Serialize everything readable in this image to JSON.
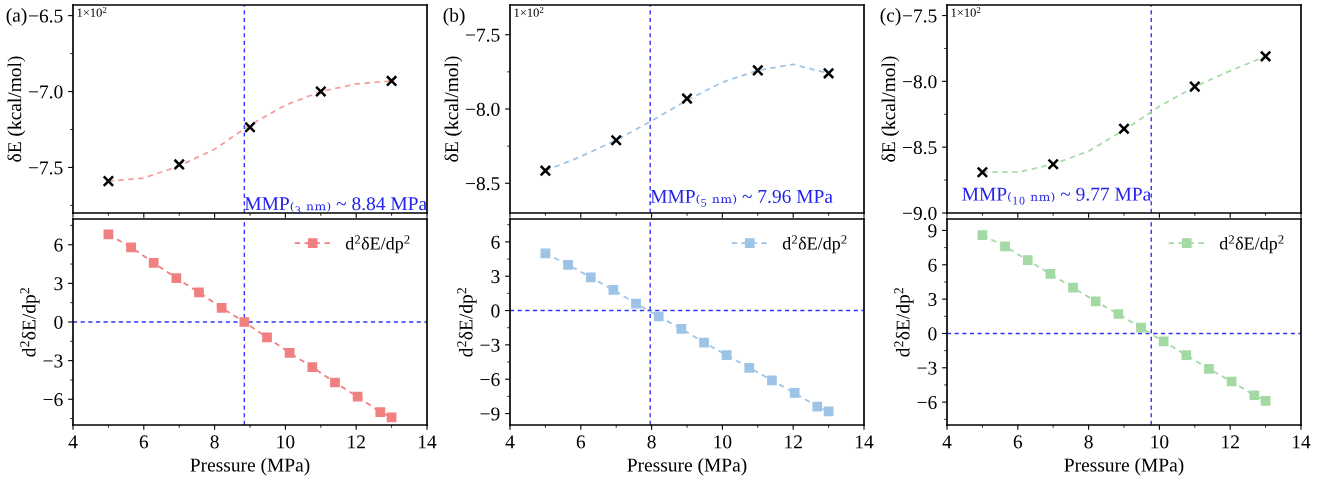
{
  "chart_data": [
    {
      "type": "scatter",
      "ylabel": "δE (kcal/mol)",
      "xlim": [
        4,
        14
      ],
      "xticks": [
        4,
        6,
        8,
        10,
        12,
        14
      ],
      "ylim": [
        -7.8,
        -6.43
      ],
      "yticks": [
        -6.5,
        {
          "value": -7,
          "label": "−7.0"
        },
        -7.5
      ],
      "tick_labels": "y",
      "annotations": [
        "(a)",
        "1×10$^{2}$",
        {
          "text": "MMP₍₃ ₙₘ₎ ~ 8.84 MPa",
          "x": 8.84,
          "y": -7.75
        }
      ],
      "ref_lines": [
        {
          "axis": "x",
          "value": 8.84,
          "color": "#3333ff",
          "line_style": "dashed"
        }
      ],
      "series": [
        {
          "type": "line",
          "color": "#f4a0a0",
          "line_style": "dashed",
          "marker": "none",
          "x": [
            5,
            6,
            7,
            8,
            9,
            10,
            11,
            12,
            13
          ],
          "values": [
            -7.59,
            -7.57,
            -7.49,
            -7.38,
            -7.22,
            -7.09,
            -7.0,
            -6.95,
            -6.93
          ]
        },
        {
          "type": "scatter",
          "color": "#000000",
          "marker": "cross",
          "x": [
            5,
            7,
            9,
            11,
            13
          ],
          "values": [
            -7.59,
            -7.48,
            -7.235,
            -7.0,
            -6.93
          ]
        }
      ]
    },
    {
      "type": "line",
      "ylabel": "d$^{2}$δE/dp$^{2}$",
      "xlabel": "Pressure (MPa)",
      "xlim": [
        4,
        14
      ],
      "xticks": [
        4,
        6,
        8,
        10,
        12,
        14
      ],
      "ylim": [
        -8,
        8
      ],
      "yticks": [
        -6,
        -3,
        0,
        3,
        6
      ],
      "legend": "top right",
      "ref_lines": [
        {
          "axis": "x",
          "value": 8.84,
          "color": "#3333ff",
          "line_style": "dashed"
        },
        {
          "axis": "y",
          "value": 0,
          "color": "#3333ff",
          "line_style": "dashed"
        }
      ],
      "series": [
        {
          "name": "d$^{2}$δE/dp$^{2}$",
          "color": "#f08080",
          "line_style": "dashed",
          "marker": "square",
          "x": [
            5,
            5.64,
            6.28,
            6.92,
            7.56,
            8.2,
            8.84,
            9.48,
            10.12,
            10.76,
            11.4,
            12.04,
            12.68,
            13
          ],
          "values": [
            6.8,
            5.8,
            4.6,
            3.4,
            2.3,
            1.1,
            0.0,
            -1.2,
            -2.4,
            -3.5,
            -4.7,
            -5.8,
            -7.0,
            -7.4
          ]
        }
      ]
    },
    {
      "type": "scatter",
      "ylabel": "δE (kcal/mol)",
      "xlim": [
        4,
        14
      ],
      "xticks": [
        4,
        6,
        8,
        10,
        12,
        14
      ],
      "ylim": [
        -8.7,
        -7.3
      ],
      "yticks": [
        -7.5,
        {
          "value": -8,
          "label": "−8.0"
        },
        -8.5
      ],
      "tick_labels": "y",
      "annotations": [
        "(b)",
        "1×10$^{2}$",
        {
          "text": "MMP₍₅ ₙₘ₎ ~ 7.96 MPa",
          "x": 7.96,
          "y": -8.6
        }
      ],
      "ref_lines": [
        {
          "axis": "x",
          "value": 7.96,
          "color": "#3333ff",
          "line_style": "dashed"
        }
      ],
      "series": [
        {
          "type": "line",
          "color": "#a0c4e6",
          "line_style": "dashed",
          "marker": "none",
          "x": [
            5,
            6,
            7,
            8,
            9,
            10,
            11,
            12,
            13
          ],
          "values": [
            -8.415,
            -8.32,
            -8.21,
            -8.08,
            -7.94,
            -7.82,
            -7.74,
            -7.7,
            -7.76
          ]
        },
        {
          "type": "scatter",
          "color": "#000000",
          "marker": "cross",
          "x": [
            5,
            7,
            9,
            11,
            13
          ],
          "values": [
            -8.415,
            -8.21,
            -7.93,
            -7.74,
            -7.76
          ]
        }
      ]
    },
    {
      "type": "line",
      "ylabel": "d$^{2}$δE/dp$^{2}$",
      "xlabel": "Pressure (MPa)",
      "xlim": [
        4,
        14
      ],
      "xticks": [
        4,
        6,
        8,
        10,
        12,
        14
      ],
      "ylim": [
        -10,
        8
      ],
      "yticks": [
        -9,
        -6,
        -3,
        0,
        3,
        6
      ],
      "legend": "top right",
      "ref_lines": [
        {
          "axis": "x",
          "value": 7.96,
          "color": "#3333ff",
          "line_style": "dashed"
        },
        {
          "axis": "y",
          "value": 0,
          "color": "#3333ff",
          "line_style": "dashed"
        }
      ],
      "series": [
        {
          "name": "d$^{2}$δE/dp$^{2}$",
          "color": "#9dc3e6",
          "line_style": "dashed",
          "marker": "square",
          "x": [
            5,
            5.64,
            6.28,
            6.92,
            7.56,
            8.2,
            8.84,
            9.48,
            10.12,
            10.76,
            11.4,
            12.04,
            12.68,
            13
          ],
          "values": [
            5.0,
            4.0,
            2.9,
            1.8,
            0.6,
            -0.5,
            -1.6,
            -2.8,
            -3.9,
            -5.0,
            -6.1,
            -7.2,
            -8.4,
            -8.8
          ]
        }
      ]
    },
    {
      "type": "scatter",
      "ylabel": "δE (kcal/mol)",
      "xlim": [
        4,
        14
      ],
      "xticks": [
        4,
        6,
        8,
        10,
        12,
        14
      ],
      "ylim": [
        -9.0,
        -7.42
      ],
      "yticks": [
        -7.5,
        {
          "value": -8,
          "label": "−8.0"
        },
        -8.5,
        {
          "value": -9,
          "label": "−9.0"
        }
      ],
      "tick_labels": "y",
      "annotations": [
        "(c)",
        "1×10$^{2}$",
        {
          "text": "MMP₍₁₀ ₙₘ₎ ~ 9.77 MPa",
          "x": 9.77,
          "y": -8.87
        }
      ],
      "ref_lines": [
        {
          "axis": "x",
          "value": 9.77,
          "color": "#3333ff",
          "line_style": "dashed"
        }
      ],
      "series": [
        {
          "type": "line",
          "color": "#a8dca8",
          "line_style": "dashed",
          "marker": "none",
          "x": [
            5,
            6,
            7,
            8,
            9,
            10,
            11,
            12,
            13
          ],
          "values": [
            -8.69,
            -8.69,
            -8.63,
            -8.53,
            -8.37,
            -8.19,
            -8.04,
            -7.92,
            -7.81
          ]
        },
        {
          "type": "scatter",
          "color": "#000000",
          "marker": "cross",
          "x": [
            5,
            7,
            9,
            11,
            13
          ],
          "values": [
            -8.69,
            -8.63,
            -8.36,
            -8.04,
            -7.81
          ]
        }
      ]
    },
    {
      "type": "line",
      "ylabel": "d$^{2}$δE/dp$^{2}$",
      "xlabel": "Pressure (MPa)",
      "xlim": [
        4,
        14
      ],
      "xticks": [
        4,
        6,
        8,
        10,
        12,
        14
      ],
      "ylim": [
        -8,
        10
      ],
      "yticks": [
        -6,
        -3,
        0,
        3,
        6,
        9
      ],
      "legend": "top right",
      "ref_lines": [
        {
          "axis": "x",
          "value": 9.77,
          "color": "#3333ff",
          "line_style": "dashed"
        },
        {
          "axis": "y",
          "value": 0,
          "color": "#3333ff",
          "line_style": "dashed"
        }
      ],
      "series": [
        {
          "name": "d$^{2}$δE/dp$^{2}$",
          "color": "#a3d9a3",
          "line_style": "dashed",
          "marker": "square",
          "x": [
            5,
            5.64,
            6.28,
            6.92,
            7.56,
            8.2,
            8.84,
            9.48,
            10.12,
            10.76,
            11.4,
            12.04,
            12.68,
            13
          ],
          "values": [
            8.6,
            7.6,
            6.4,
            5.2,
            4.0,
            2.8,
            1.7,
            0.5,
            -0.7,
            -1.9,
            -3.1,
            -4.2,
            -5.4,
            -5.9
          ]
        }
      ]
    }
  ]
}
